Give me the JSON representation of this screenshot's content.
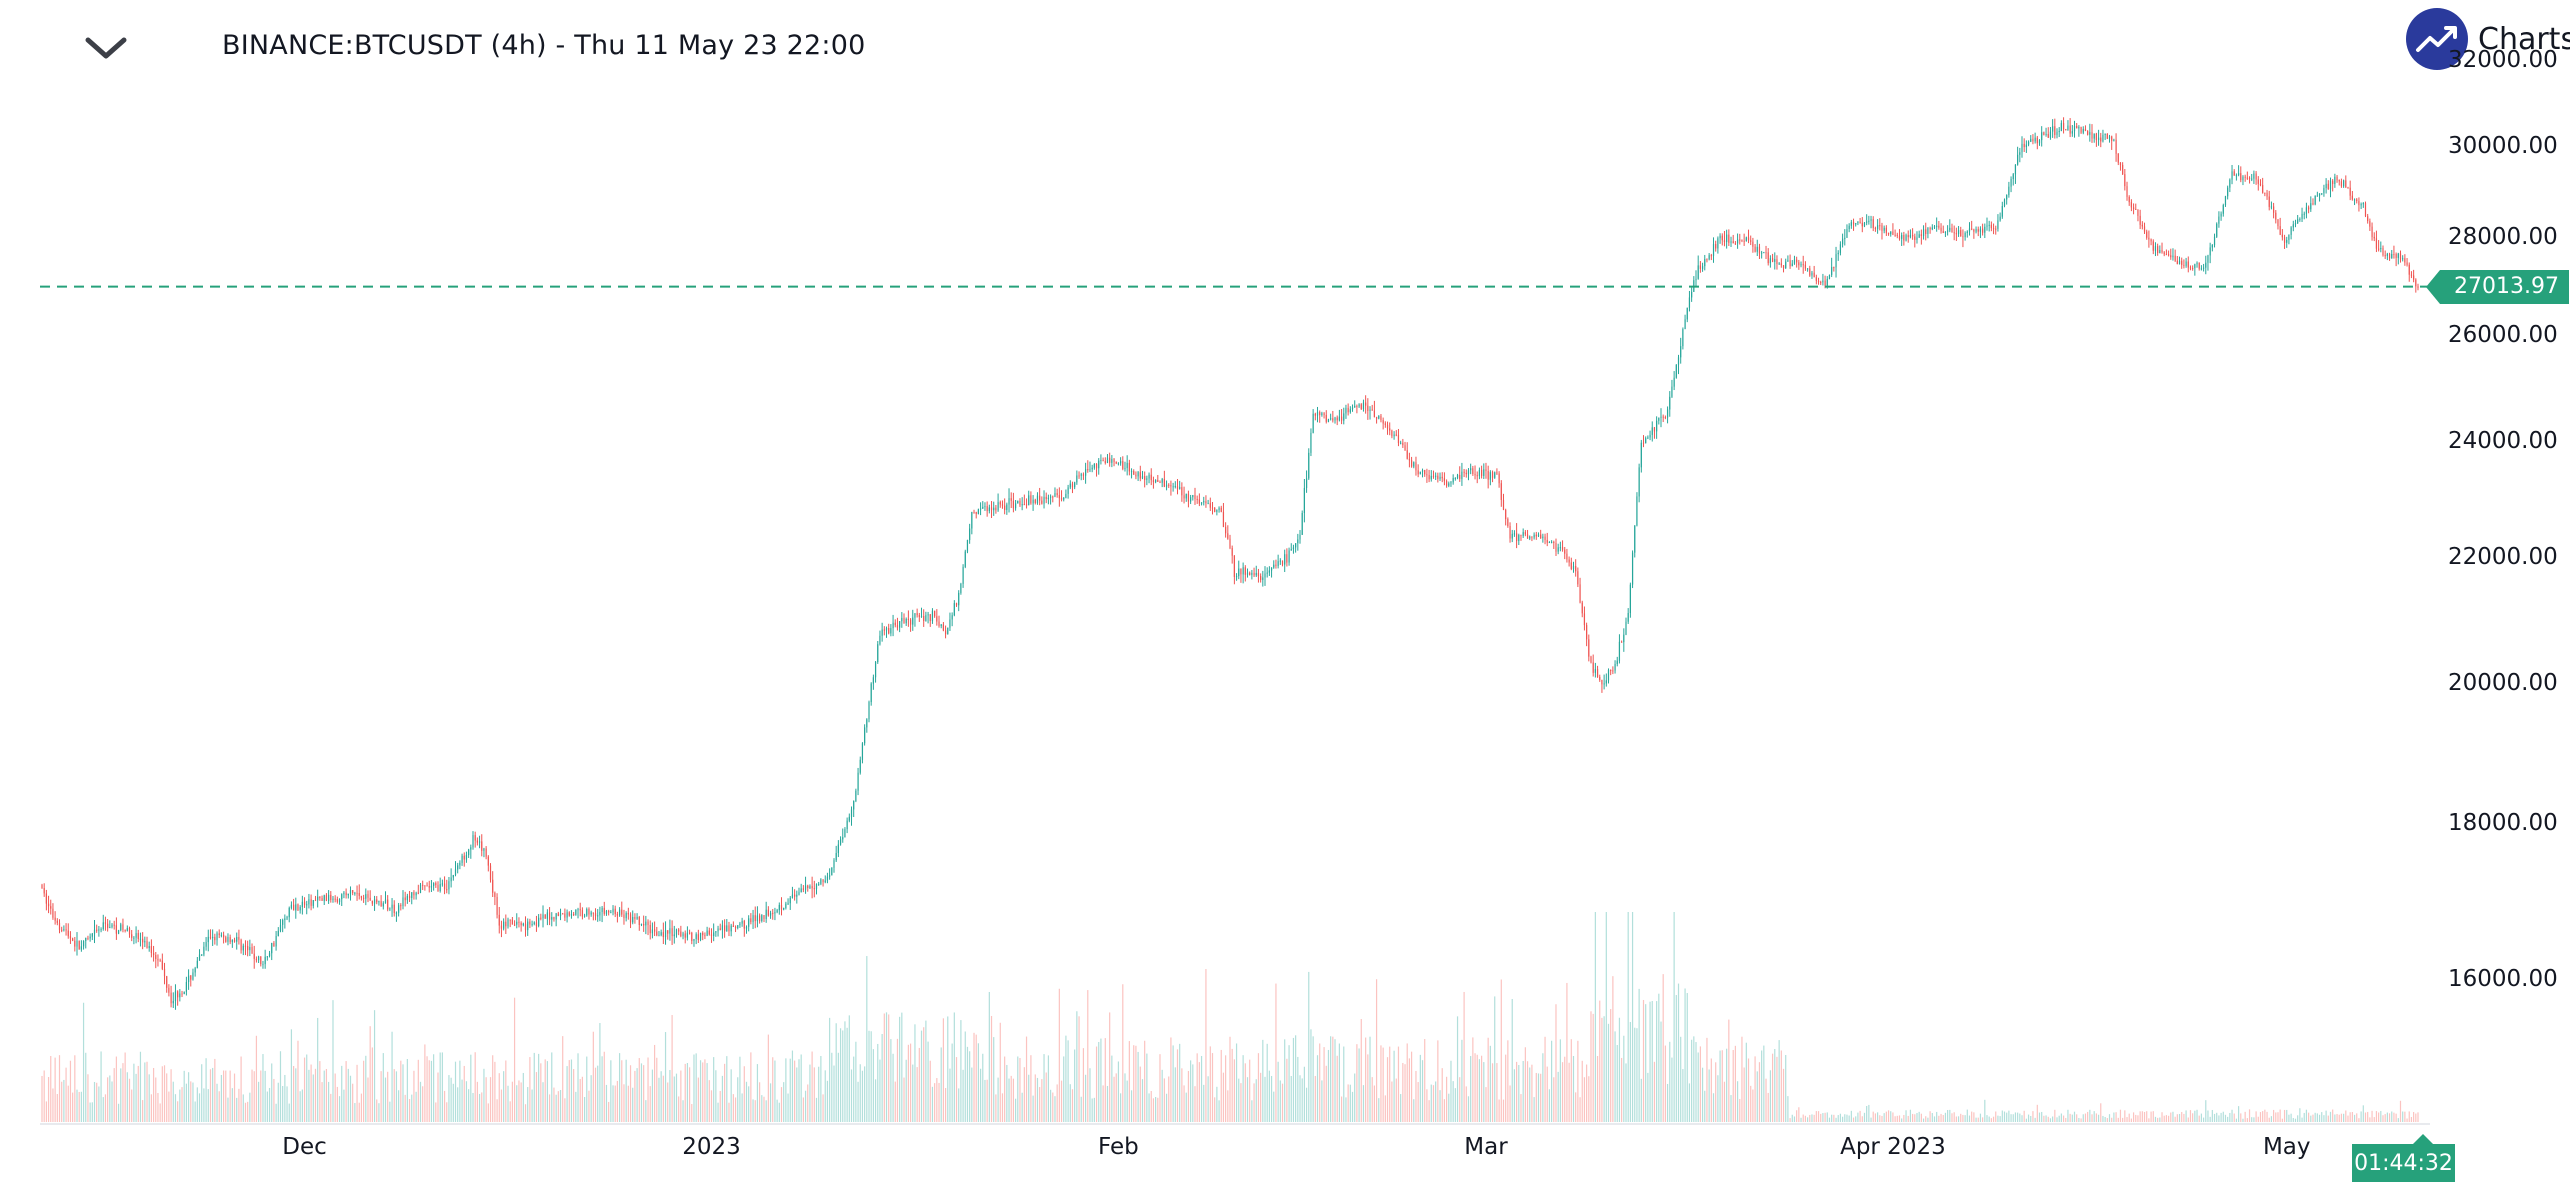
{
  "header": {
    "title": "BINANCE:BTCUSDT (4h) - Thu 11 May 23 22:00",
    "menu_icon": "chevron-down-icon"
  },
  "logo": {
    "icon": "trend-up-icon",
    "text": "Charts p",
    "color": "#2a3a9c"
  },
  "colors": {
    "up": "#26a69a",
    "down": "#ef5350",
    "up_volume": "#b2dfdb",
    "down_volume": "#fbc3c0",
    "price_line": "#26a17b"
  },
  "chart_data": {
    "type": "candlestick",
    "symbol": "BINANCE:BTCUSDT",
    "interval": "4h",
    "scale": "log",
    "ylim": [
      15000,
      32500
    ],
    "y_ticks": [
      "32000.00",
      "30000.00",
      "28000.00",
      "26000.00",
      "24000.00",
      "22000.00",
      "20000.00",
      "18000.00",
      "16000.00"
    ],
    "y_tick_values": [
      32000,
      30000,
      28000,
      26000,
      24000,
      22000,
      20000,
      18000,
      16000
    ],
    "x_ticks": [
      "Dec",
      "2023",
      "Feb",
      "Mar",
      "Apr 2023",
      "May"
    ],
    "x_tick_dates": [
      "2022-12-01",
      "2023-01-01",
      "2023-02-01",
      "2023-03-01",
      "2023-04-01",
      "2023-05-01"
    ],
    "x_range": [
      "2022-11-11",
      "2023-05-11"
    ],
    "last_price": 27013.97,
    "last_price_label": "27013.97",
    "countdown": "01:44:32",
    "price_path": [
      [
        "2022-11-11",
        17200
      ],
      [
        "2022-11-12",
        16800
      ],
      [
        "2022-11-14",
        16400
      ],
      [
        "2022-11-16",
        16700
      ],
      [
        "2022-11-18",
        16600
      ],
      [
        "2022-11-20",
        16300
      ],
      [
        "2022-11-21",
        15800
      ],
      [
        "2022-11-22",
        15900
      ],
      [
        "2022-11-24",
        16550
      ],
      [
        "2022-11-26",
        16500
      ],
      [
        "2022-11-28",
        16200
      ],
      [
        "2022-11-30",
        16900
      ],
      [
        "2022-12-02",
        17000
      ],
      [
        "2022-12-05",
        17100
      ],
      [
        "2022-12-08",
        16900
      ],
      [
        "2022-12-10",
        17150
      ],
      [
        "2022-12-12",
        17200
      ],
      [
        "2022-12-14",
        17800
      ],
      [
        "2022-12-15",
        17600
      ],
      [
        "2022-12-16",
        16700
      ],
      [
        "2022-12-18",
        16700
      ],
      [
        "2022-12-20",
        16800
      ],
      [
        "2022-12-22",
        16850
      ],
      [
        "2022-12-25",
        16850
      ],
      [
        "2022-12-28",
        16600
      ],
      [
        "2022-12-31",
        16550
      ],
      [
        "2023-01-03",
        16650
      ],
      [
        "2023-01-06",
        16900
      ],
      [
        "2023-01-08",
        17100
      ],
      [
        "2023-01-10",
        17300
      ],
      [
        "2023-01-12",
        18300
      ],
      [
        "2023-01-14",
        20800
      ],
      [
        "2023-01-16",
        21000
      ],
      [
        "2023-01-18",
        21100
      ],
      [
        "2023-01-19",
        20800
      ],
      [
        "2023-01-20",
        21400
      ],
      [
        "2023-01-21",
        22800
      ],
      [
        "2023-01-23",
        22900
      ],
      [
        "2023-01-26",
        23000
      ],
      [
        "2023-01-28",
        23100
      ],
      [
        "2023-01-30",
        23600
      ],
      [
        "2023-02-01",
        23700
      ],
      [
        "2023-02-03",
        23400
      ],
      [
        "2023-02-05",
        23300
      ],
      [
        "2023-02-07",
        23000
      ],
      [
        "2023-02-09",
        22800
      ],
      [
        "2023-02-10",
        21800
      ],
      [
        "2023-02-12",
        21700
      ],
      [
        "2023-02-14",
        22000
      ],
      [
        "2023-02-15",
        22400
      ],
      [
        "2023-02-16",
        24500
      ],
      [
        "2023-02-18",
        24500
      ],
      [
        "2023-02-20",
        24700
      ],
      [
        "2023-02-22",
        24200
      ],
      [
        "2023-02-24",
        23500
      ],
      [
        "2023-02-26",
        23300
      ],
      [
        "2023-02-28",
        23500
      ],
      [
        "2023-03-02",
        23400
      ],
      [
        "2023-03-03",
        22400
      ],
      [
        "2023-03-05",
        22400
      ],
      [
        "2023-03-07",
        22100
      ],
      [
        "2023-03-08",
        21800
      ],
      [
        "2023-03-09",
        20400
      ],
      [
        "2023-03-10",
        20000
      ],
      [
        "2023-03-11",
        20300
      ],
      [
        "2023-03-12",
        21100
      ],
      [
        "2023-03-13",
        24000
      ],
      [
        "2023-03-14",
        24300
      ],
      [
        "2023-03-15",
        24600
      ],
      [
        "2023-03-17",
        27200
      ],
      [
        "2023-03-19",
        28000
      ],
      [
        "2023-03-21",
        28000
      ],
      [
        "2023-03-23",
        27500
      ],
      [
        "2023-03-25",
        27500
      ],
      [
        "2023-03-27",
        27000
      ],
      [
        "2023-03-29",
        28400
      ],
      [
        "2023-03-31",
        28300
      ],
      [
        "2023-04-02",
        28000
      ],
      [
        "2023-04-04",
        28200
      ],
      [
        "2023-04-06",
        28100
      ],
      [
        "2023-04-09",
        28200
      ],
      [
        "2023-04-11",
        30100
      ],
      [
        "2023-04-13",
        30300
      ],
      [
        "2023-04-14",
        30500
      ],
      [
        "2023-04-16",
        30300
      ],
      [
        "2023-04-18",
        30200
      ],
      [
        "2023-04-19",
        28900
      ],
      [
        "2023-04-21",
        27800
      ],
      [
        "2023-04-23",
        27500
      ],
      [
        "2023-04-25",
        27400
      ],
      [
        "2023-04-26",
        28400
      ],
      [
        "2023-04-27",
        29400
      ],
      [
        "2023-04-29",
        29300
      ],
      [
        "2023-05-01",
        28000
      ],
      [
        "2023-05-03",
        28800
      ],
      [
        "2023-05-05",
        29300
      ],
      [
        "2023-05-07",
        28700
      ],
      [
        "2023-05-08",
        27800
      ],
      [
        "2023-05-09",
        27600
      ],
      [
        "2023-05-10",
        27600
      ],
      [
        "2023-05-11",
        27014
      ]
    ],
    "volume_regimes": [
      {
        "from": "2022-11-11",
        "to": "2023-01-09",
        "level": 0.45
      },
      {
        "from": "2023-01-10",
        "to": "2023-01-22",
        "level": 0.7
      },
      {
        "from": "2023-01-23",
        "to": "2023-03-08",
        "level": 0.55
      },
      {
        "from": "2023-03-09",
        "to": "2023-03-15",
        "level": 0.95
      },
      {
        "from": "2023-03-16",
        "to": "2023-03-23",
        "level": 0.55
      },
      {
        "from": "2023-03-24",
        "to": "2023-05-11",
        "level": 0.08
      }
    ]
  }
}
